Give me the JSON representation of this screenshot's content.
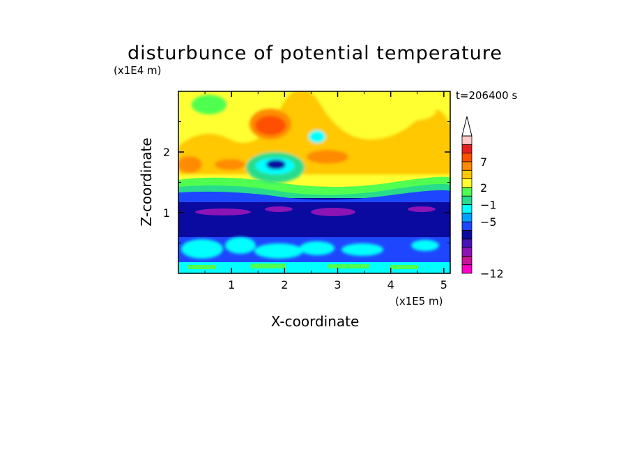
{
  "chart_data": {
    "type": "heatmap",
    "title": "disturbunce of potential temperature",
    "xlabel": "X-coordinate",
    "ylabel": "Z-coordinate",
    "x_unit": "(x1E5 m)",
    "y_unit": "(x1E4 m)",
    "time_label": "t=206400 s",
    "xlim": [
      0,
      5.12
    ],
    "ylim": [
      0,
      3.0
    ],
    "x_ticks": [
      "1",
      "2",
      "3",
      "4",
      "5"
    ],
    "y_ticks": [
      "1",
      "2"
    ],
    "colorbar": {
      "levels": [
        -12,
        -10,
        -8,
        -5,
        -3,
        -1,
        0,
        2,
        4,
        7,
        9,
        11
      ],
      "labels": [
        "-12",
        "-5",
        "-1",
        "2",
        "7"
      ],
      "colors": [
        "#ff00c8",
        "#c8149a",
        "#8c14b4",
        "#4614b4",
        "#0a0aa0",
        "#1e46ff",
        "#00a0ff",
        "#00ffff",
        "#28dc8c",
        "#50ff50",
        "#ffff32",
        "#ffc800",
        "#ff8c00",
        "#ff5000",
        "#e61e1e",
        "#ffc8c8"
      ]
    },
    "regions": [
      {
        "z_range": [
          0,
          0.12
        ],
        "level": "-1 to 2",
        "note": "mixed cyan/green surface layer"
      },
      {
        "z_range": [
          0.12,
          0.55
        ],
        "level": "-3 to -1",
        "note": "cyan patches within blue"
      },
      {
        "z_range": [
          0.55,
          1.3
        ],
        "level": "-5",
        "note": "deep blue layer with purple cores near z=1"
      },
      {
        "z_range": [
          1.3,
          1.5
        ],
        "level": "-3 to 0",
        "note": "transition band"
      },
      {
        "z_range": [
          1.5,
          3.0
        ],
        "level": "0 to 7",
        "note": "yellow/orange wave structure, max near x=1.8, z=2.4; cold core near x=1.9, z=1.85"
      }
    ]
  }
}
